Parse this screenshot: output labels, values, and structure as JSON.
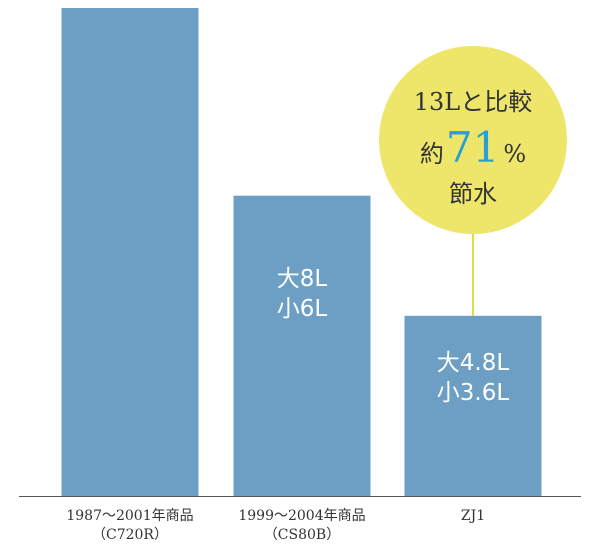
{
  "chart_data": {
    "type": "bar",
    "categories": [
      {
        "line1": "1987〜2001年商品",
        "line2": "（C720R）"
      },
      {
        "line1": "1999〜2004年商品",
        "line2": "（CS80B）"
      },
      {
        "line1": "ZJ1",
        "line2": ""
      }
    ],
    "values": [
      13,
      8,
      4.8
    ],
    "bar_labels": [
      [],
      [
        "大8L",
        "小6L"
      ],
      [
        "大4.8L",
        "小3.6L"
      ]
    ],
    "ylim": [
      0,
      13
    ],
    "title": "",
    "xlabel": "",
    "ylabel": "",
    "grid": false,
    "callout": {
      "line1": "13Lと比較",
      "line2_prefix": "約",
      "line2_value": "71",
      "line2_suffix": "%",
      "line3": "節水",
      "target_index": 2
    }
  },
  "colors": {
    "bar": "#6c9fc3",
    "bar_text": "#ffffff",
    "axis": "#555555",
    "tick_text": "#333333",
    "callout_fill": "#ede66a",
    "callout_line": "#e3d94a",
    "callout_text": "#333333",
    "callout_accent": "#2a9fd6"
  }
}
